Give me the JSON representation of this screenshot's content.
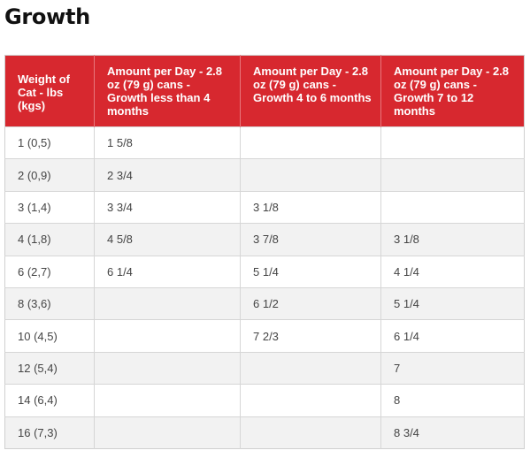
{
  "page": {
    "title": "Growth"
  },
  "table": {
    "headers": [
      "Weight of Cat - lbs (kgs)",
      "Amount per Day - 2.8 oz (79 g) cans - Growth less than 4 months",
      "Amount per Day - 2.8 oz (79 g) cans - Growth 4 to 6 months",
      "Amount per Day - 2.8 oz (79 g) cans - Growth 7 to 12 months"
    ],
    "rows": [
      [
        "1 (0,5)",
        "1 5/8",
        "",
        ""
      ],
      [
        "2 (0,9)",
        "2 3/4",
        "",
        ""
      ],
      [
        "3 (1,4)",
        "3 3/4",
        "3 1/8",
        ""
      ],
      [
        "4 (1,8)",
        "4 5/8",
        "3 7/8",
        "3 1/8"
      ],
      [
        "6 (2,7)",
        "6 1/4",
        "5 1/4",
        "4 1/4"
      ],
      [
        "8 (3,6)",
        "",
        "6 1/2",
        "5 1/4"
      ],
      [
        "10 (4,5)",
        "",
        "7 2/3",
        "6 1/4"
      ],
      [
        "12 (5,4)",
        "",
        "",
        "7"
      ],
      [
        "14 (6,4)",
        "",
        "",
        "8"
      ],
      [
        "16 (7,3)",
        "",
        "",
        "8 3/4"
      ]
    ]
  },
  "colors": {
    "header_background": "#d7282f",
    "header_text": "#ffffff",
    "stripe_row": "#f2f2f2"
  }
}
